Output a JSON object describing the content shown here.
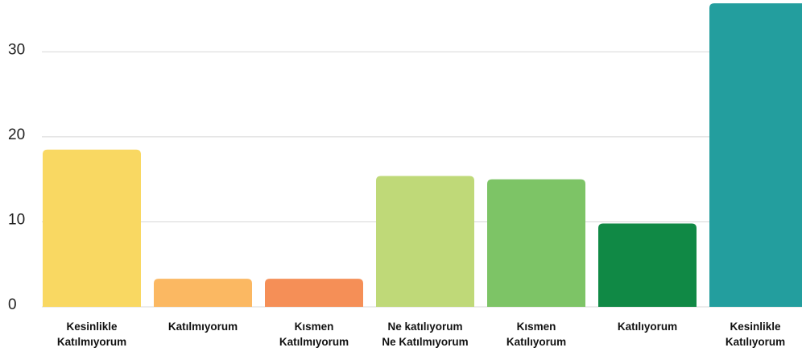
{
  "chart_data": {
    "type": "bar",
    "categories": [
      "Kesinlikle\nKatılmıyorum",
      "Katılmıyorum",
      "Kısmen\nKatılmıyorum",
      "Ne katılıyorum\nNe Katılmıyorum",
      "Kısmen\nKatılıyorum",
      "Katılıyorum",
      "Kesinlikle\nKatılıyorum"
    ],
    "values": [
      18.5,
      3.3,
      3.3,
      15.4,
      15.0,
      9.8,
      35.7
    ],
    "colors": [
      "#f9d862",
      "#fbb862",
      "#f58f57",
      "#bfd978",
      "#7dc466",
      "#108945",
      "#239e9e"
    ],
    "ylim": [
      0,
      36
    ],
    "yticks": [
      0,
      10,
      20,
      30
    ],
    "grid": true
  }
}
